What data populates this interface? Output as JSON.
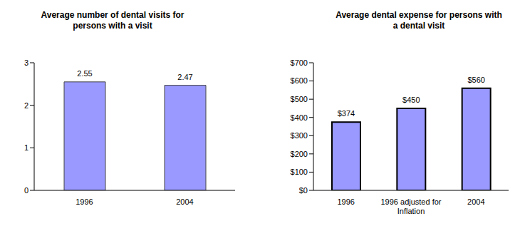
{
  "chart_data": [
    {
      "type": "bar",
      "title": "Average number of dental visits for persons with a visit",
      "categories": [
        "1996",
        "2004"
      ],
      "values": [
        2.55,
        2.47
      ],
      "color": "#9999ff",
      "ylim": [
        0,
        3
      ],
      "yticks": [
        0,
        1,
        2,
        3
      ],
      "grid": false,
      "data_labels": true
    },
    {
      "type": "bar",
      "title": "Average dental expense for persons with a dental visit",
      "categories": [
        "1996",
        "1996 adjusted for Inflation",
        "2004"
      ],
      "values": [
        374,
        450,
        560
      ],
      "value_labels": [
        "$374",
        "$450",
        "$560"
      ],
      "color": "#9999ff",
      "ylim": [
        0,
        700
      ],
      "yticks": [
        {
          "value": 0,
          "label": "$0"
        },
        {
          "value": 100,
          "label": "$100"
        },
        {
          "value": 200,
          "label": "$200"
        },
        {
          "value": 300,
          "label": "$300"
        },
        {
          "value": 400,
          "label": "$400"
        },
        {
          "value": 500,
          "label": "$500"
        },
        {
          "value": 600,
          "label": "$600"
        },
        {
          "value": 700,
          "label": "$700"
        }
      ],
      "grid": false,
      "data_labels": true
    }
  ]
}
